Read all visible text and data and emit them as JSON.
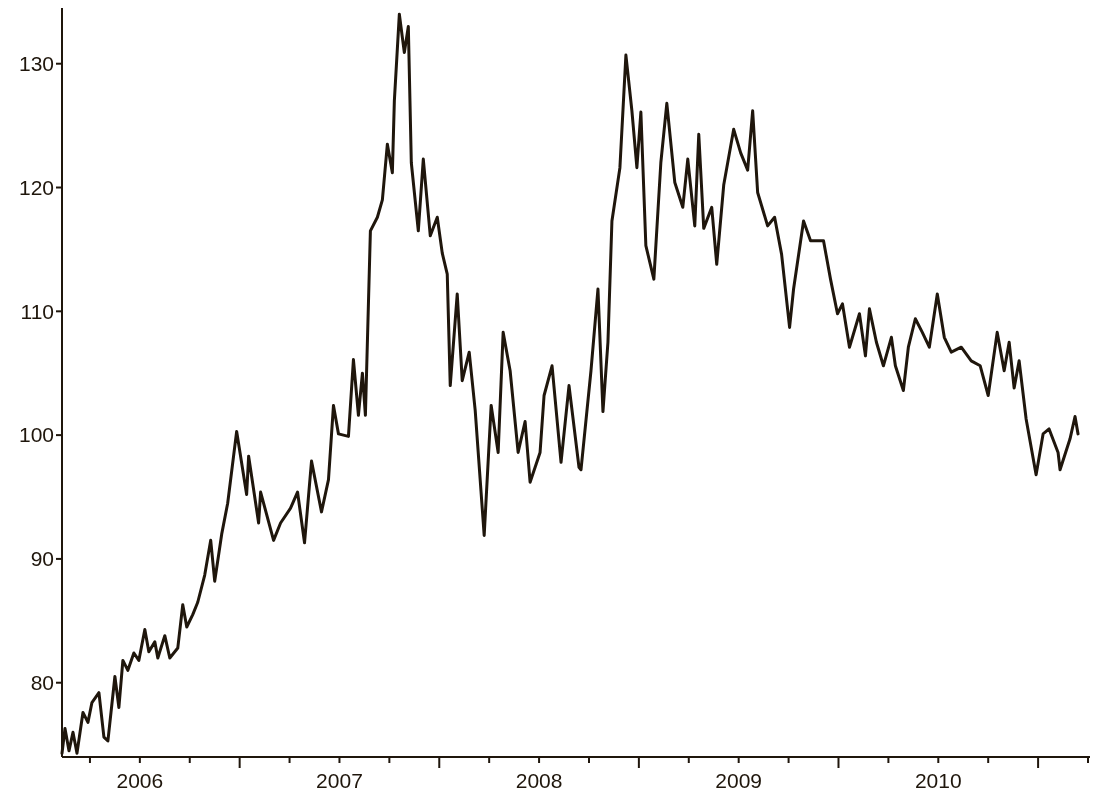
{
  "chart_data": {
    "type": "line",
    "x": [
      2006.11,
      2006.125,
      2006.145,
      2006.165,
      2006.185,
      2006.215,
      2006.24,
      2006.26,
      2006.295,
      2006.32,
      2006.34,
      2006.375,
      2006.395,
      2006.415,
      2006.44,
      2006.47,
      2006.495,
      2006.525,
      2006.545,
      2006.575,
      2006.59,
      2006.625,
      2006.65,
      2006.69,
      2006.715,
      2006.735,
      2006.765,
      2006.79,
      2006.825,
      2006.855,
      2006.875,
      2006.91,
      2006.94,
      2006.985,
      2007.035,
      2007.045,
      2007.095,
      2007.105,
      2007.17,
      2007.205,
      2007.255,
      2007.29,
      2007.325,
      2007.36,
      2007.41,
      2007.445,
      2007.47,
      2007.495,
      2007.545,
      2007.57,
      2007.595,
      2007.615,
      2007.63,
      2007.655,
      2007.69,
      2007.715,
      2007.74,
      2007.765,
      2007.775,
      2007.8,
      2007.825,
      2007.845,
      2007.86,
      2007.895,
      2007.92,
      2007.955,
      2007.99,
      2008.015,
      2008.04,
      2008.055,
      2008.09,
      2008.115,
      2008.15,
      2008.18,
      2008.225,
      2008.26,
      2008.295,
      2008.32,
      2008.355,
      2008.395,
      2008.43,
      2008.455,
      2008.505,
      2008.525,
      2008.565,
      2008.61,
      2008.65,
      2008.7,
      2008.71,
      2008.76,
      2008.795,
      2008.82,
      2008.845,
      2008.865,
      2008.905,
      2008.935,
      2008.965,
      2008.99,
      2009.01,
      2009.035,
      2009.075,
      2009.11,
      2009.14,
      2009.18,
      2009.22,
      2009.245,
      2009.28,
      2009.3,
      2009.325,
      2009.365,
      2009.39,
      2009.425,
      2009.475,
      2009.51,
      2009.545,
      2009.57,
      2009.595,
      2009.645,
      2009.68,
      2009.715,
      2009.755,
      2009.775,
      2009.825,
      2009.86,
      2009.925,
      2009.96,
      2009.995,
      2010.02,
      2010.055,
      2010.105,
      2010.135,
      2010.155,
      2010.19,
      2010.225,
      2010.265,
      2010.285,
      2010.325,
      2010.35,
      2010.385,
      2010.42,
      2010.455,
      2010.495,
      2010.53,
      2010.565,
      2010.615,
      2010.665,
      2010.71,
      2010.75,
      2010.795,
      2010.83,
      2010.855,
      2010.88,
      2010.905,
      2010.94,
      2010.99,
      2011.025,
      2011.055,
      2011.1,
      2011.11,
      2011.16,
      2011.185,
      2011.2
    ],
    "series": [
      {
        "color": "#1f160c",
        "values": [
          74.3,
          76.3,
          74.5,
          76,
          74.3,
          77.6,
          76.8,
          78.4,
          79.2,
          75.6,
          75.3,
          80.5,
          78,
          81.8,
          81,
          82.4,
          81.8,
          84.3,
          82.5,
          83.3,
          82,
          83.8,
          82,
          82.8,
          86.3,
          84.5,
          85.5,
          86.5,
          88.7,
          91.5,
          88.2,
          92,
          94.5,
          100.3,
          95.2,
          98.3,
          92.9,
          95.4,
          91.5,
          92.9,
          94.1,
          95.4,
          91.3,
          97.9,
          93.8,
          96.4,
          102.4,
          100.1,
          99.9,
          106.1,
          101.6,
          105,
          101.6,
          116.5,
          117.6,
          119,
          123.5,
          121.2,
          127,
          134,
          130.9,
          133,
          122,
          116.5,
          122.3,
          116.1,
          117.6,
          114.7,
          113,
          104,
          111.4,
          104.4,
          106.7,
          102,
          91.9,
          102.4,
          98.6,
          108.3,
          105.2,
          98.6,
          101.1,
          96.2,
          98.6,
          103.2,
          105.6,
          97.8,
          104,
          97.4,
          97.2,
          105.2,
          111.8,
          101.9,
          107.5,
          117.3,
          121.6,
          130.7,
          126.2,
          121.6,
          126.1,
          115.3,
          112.6,
          122,
          126.8,
          120.4,
          118.4,
          122.3,
          116.9,
          124.3,
          116.7,
          118.4,
          113.8,
          120.2,
          124.7,
          122.8,
          121.4,
          126.2,
          119.6,
          116.9,
          117.6,
          114.6,
          108.7,
          111.8,
          117.3,
          115.7,
          115.7,
          112.6,
          109.8,
          110.6,
          107.1,
          109.8,
          106.4,
          110.2,
          107.5,
          105.6,
          107.9,
          105.6,
          103.6,
          107.1,
          109.4,
          108.3,
          107.1,
          111.4,
          107.9,
          106.7,
          107.1,
          106,
          105.6,
          103.2,
          108.3,
          105.2,
          107.5,
          103.8,
          106,
          101.3,
          96.8,
          100.1,
          100.5,
          98.6,
          97.2,
          99.7,
          101.5,
          100.1
        ]
      }
    ],
    "xlim": [
      2006.11,
      2011.26
    ],
    "ylim": [
      74,
      134.5
    ],
    "xticks": [
      {
        "value": 2006.25,
        "label": null
      },
      {
        "value": 2006.5,
        "label": "2006"
      },
      {
        "value": 2006.75,
        "label": null
      },
      {
        "value": 2007,
        "label": null
      },
      {
        "value": 2007.25,
        "label": null
      },
      {
        "value": 2007.5,
        "label": "2007"
      },
      {
        "value": 2007.75,
        "label": null
      },
      {
        "value": 2008,
        "label": null
      },
      {
        "value": 2008.25,
        "label": null
      },
      {
        "value": 2008.5,
        "label": "2008"
      },
      {
        "value": 2008.75,
        "label": null
      },
      {
        "value": 2009,
        "label": null
      },
      {
        "value": 2009.25,
        "label": null
      },
      {
        "value": 2009.5,
        "label": "2009"
      },
      {
        "value": 2009.75,
        "label": null
      },
      {
        "value": 2010,
        "label": null
      },
      {
        "value": 2010.25,
        "label": null
      },
      {
        "value": 2010.5,
        "label": "2010"
      },
      {
        "value": 2010.75,
        "label": null
      },
      {
        "value": 2011,
        "label": null
      },
      {
        "value": 2011.25,
        "label": null
      }
    ],
    "yticks": [
      80,
      90,
      100,
      110,
      120,
      130
    ],
    "grid": false,
    "marker": "none",
    "line_style": "solid"
  }
}
